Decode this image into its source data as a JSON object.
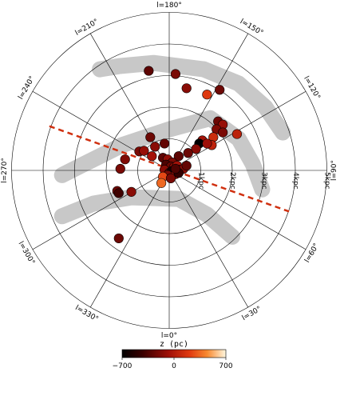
{
  "chart_data": {
    "type": "scatter",
    "projection": "polar-galactic",
    "radial_unit": "kpc",
    "radial_max": 5,
    "rings": [
      1,
      2,
      3,
      4,
      5
    ],
    "ring_labels": [
      "1kpc",
      "2kpc",
      "3kpc",
      "4kpc",
      "5kpc"
    ],
    "spokes_deg": [
      0,
      30,
      60,
      90,
      120,
      150,
      180,
      210,
      240,
      270,
      300,
      330
    ],
    "spoke_labels": [
      {
        "l": 0,
        "text": "l=0°"
      },
      {
        "l": 30,
        "text": "l=30°"
      },
      {
        "l": 60,
        "text": "l=60°"
      },
      {
        "l": 90,
        "text": "l=90°"
      },
      {
        "l": 120,
        "text": "l=120°"
      },
      {
        "l": 150,
        "text": "l=150°"
      },
      {
        "l": 180,
        "text": "l=180°"
      },
      {
        "l": 210,
        "text": "l=210°"
      },
      {
        "l": 240,
        "text": "l=240°"
      },
      {
        "l": 270,
        "text": "l=270°"
      },
      {
        "l": 300,
        "text": "l=300°"
      },
      {
        "l": 330,
        "text": "l=330°"
      }
    ],
    "spiral_arms": [
      [
        [
          3.6,
          1.2
        ],
        [
          3.05,
          2.0
        ],
        [
          2.2,
          2.75
        ],
        [
          1.1,
          3.2
        ],
        [
          -0.5,
          3.4
        ],
        [
          -1.6,
          3.3
        ],
        [
          -2.2,
          3.2
        ]
      ],
      [
        [
          2.95,
          -0.6
        ],
        [
          2.65,
          0.2
        ],
        [
          2.2,
          1.0
        ],
        [
          1.3,
          1.65
        ],
        [
          0.0,
          1.3
        ],
        [
          -1.5,
          0.8
        ],
        [
          -2.7,
          0.2
        ],
        [
          -3.4,
          -0.15
        ]
      ],
      [
        [
          2.0,
          -2.1
        ],
        [
          1.2,
          -1.4
        ],
        [
          0.3,
          -0.9
        ],
        [
          -1.2,
          -0.85
        ],
        [
          -2.4,
          -1.05
        ],
        [
          -3.4,
          -1.45
        ]
      ]
    ],
    "dashed_line": {
      "from": [
        -3.8,
        1.4
      ],
      "to": [
        3.8,
        -1.3
      ],
      "color": "#d03010"
    },
    "points": [
      {
        "x": -0.65,
        "y": 3.15,
        "z": -300
      },
      {
        "x": 0.2,
        "y": 3.05,
        "z": -200
      },
      {
        "x": 0.55,
        "y": 2.6,
        "z": -150
      },
      {
        "x": 1.6,
        "y": 2.55,
        "z": -250
      },
      {
        "x": 1.2,
        "y": 2.4,
        "z": 200
      },
      {
        "x": 1.55,
        "y": 1.55,
        "z": -250
      },
      {
        "x": 1.7,
        "y": 1.45,
        "z": -100
      },
      {
        "x": 1.5,
        "y": 1.3,
        "z": -180
      },
      {
        "x": 1.7,
        "y": 1.2,
        "z": -200
      },
      {
        "x": 2.15,
        "y": 1.15,
        "z": 50
      },
      {
        "x": 1.4,
        "y": 1.05,
        "z": 120
      },
      {
        "x": 1.35,
        "y": 0.8,
        "z": 60
      },
      {
        "x": 1.05,
        "y": 0.95,
        "z": -50
      },
      {
        "x": 0.95,
        "y": 0.85,
        "z": -700
      },
      {
        "x": 1.2,
        "y": 0.85,
        "z": -80
      },
      {
        "x": 0.85,
        "y": 0.68,
        "z": -150
      },
      {
        "x": 0.6,
        "y": 0.55,
        "z": -250
      },
      {
        "x": 0.3,
        "y": 0.45,
        "z": -300
      },
      {
        "x": -0.6,
        "y": 1.05,
        "z": -250
      },
      {
        "x": -0.45,
        "y": 0.75,
        "z": -150
      },
      {
        "x": -0.15,
        "y": 0.85,
        "z": -280
      },
      {
        "x": -0.95,
        "y": 0.6,
        "z": -200
      },
      {
        "x": -0.8,
        "y": 0.62,
        "z": -100
      },
      {
        "x": -0.55,
        "y": 0.45,
        "z": -50
      },
      {
        "x": -0.2,
        "y": 0.4,
        "z": -300
      },
      {
        "x": -0.05,
        "y": 0.35,
        "z": -120
      },
      {
        "x": 0.1,
        "y": 0.25,
        "z": -200
      },
      {
        "x": -0.1,
        "y": 0.18,
        "z": -350
      },
      {
        "x": 0.05,
        "y": 0.12,
        "z": -250
      },
      {
        "x": 0.15,
        "y": 0.1,
        "z": -180
      },
      {
        "x": 0.25,
        "y": 0.15,
        "z": -60
      },
      {
        "x": 0.32,
        "y": 0.02,
        "z": -220
      },
      {
        "x": 0.45,
        "y": 0.05,
        "z": -150
      },
      {
        "x": 0.55,
        "y": 0.15,
        "z": -280
      },
      {
        "x": -0.15,
        "y": 0.02,
        "z": -150
      },
      {
        "x": 0.0,
        "y": -0.08,
        "z": -250
      },
      {
        "x": 0.12,
        "y": -0.05,
        "z": -300
      },
      {
        "x": 0.08,
        "y": -0.02,
        "z": -600
      },
      {
        "x": -0.05,
        "y": -0.15,
        "z": -200
      },
      {
        "x": 0.2,
        "y": -0.12,
        "z": -100
      },
      {
        "x": 0.3,
        "y": -0.08,
        "z": -450
      },
      {
        "x": 0.2,
        "y": 0.05,
        "z": -350
      },
      {
        "x": -0.2,
        "y": -0.2,
        "z": 250
      },
      {
        "x": 0.05,
        "y": -0.25,
        "z": -200
      },
      {
        "x": -1.55,
        "y": 0.05,
        "z": -200
      },
      {
        "x": -1.65,
        "y": -0.65,
        "z": -250
      },
      {
        "x": -1.6,
        "y": -0.72,
        "z": -400
      },
      {
        "x": -1.2,
        "y": -0.68,
        "z": -150
      },
      {
        "x": -0.25,
        "y": -0.4,
        "z": 350
      },
      {
        "x": -1.6,
        "y": -2.15,
        "z": -250
      },
      {
        "x": -1.4,
        "y": 0.35,
        "z": -180
      }
    ],
    "colorbar": {
      "title": "z (pc)",
      "min": -700,
      "max": 700,
      "tick_values": [
        -700,
        0,
        700
      ],
      "tick_labels": [
        "−700",
        "0",
        "700"
      ]
    }
  }
}
